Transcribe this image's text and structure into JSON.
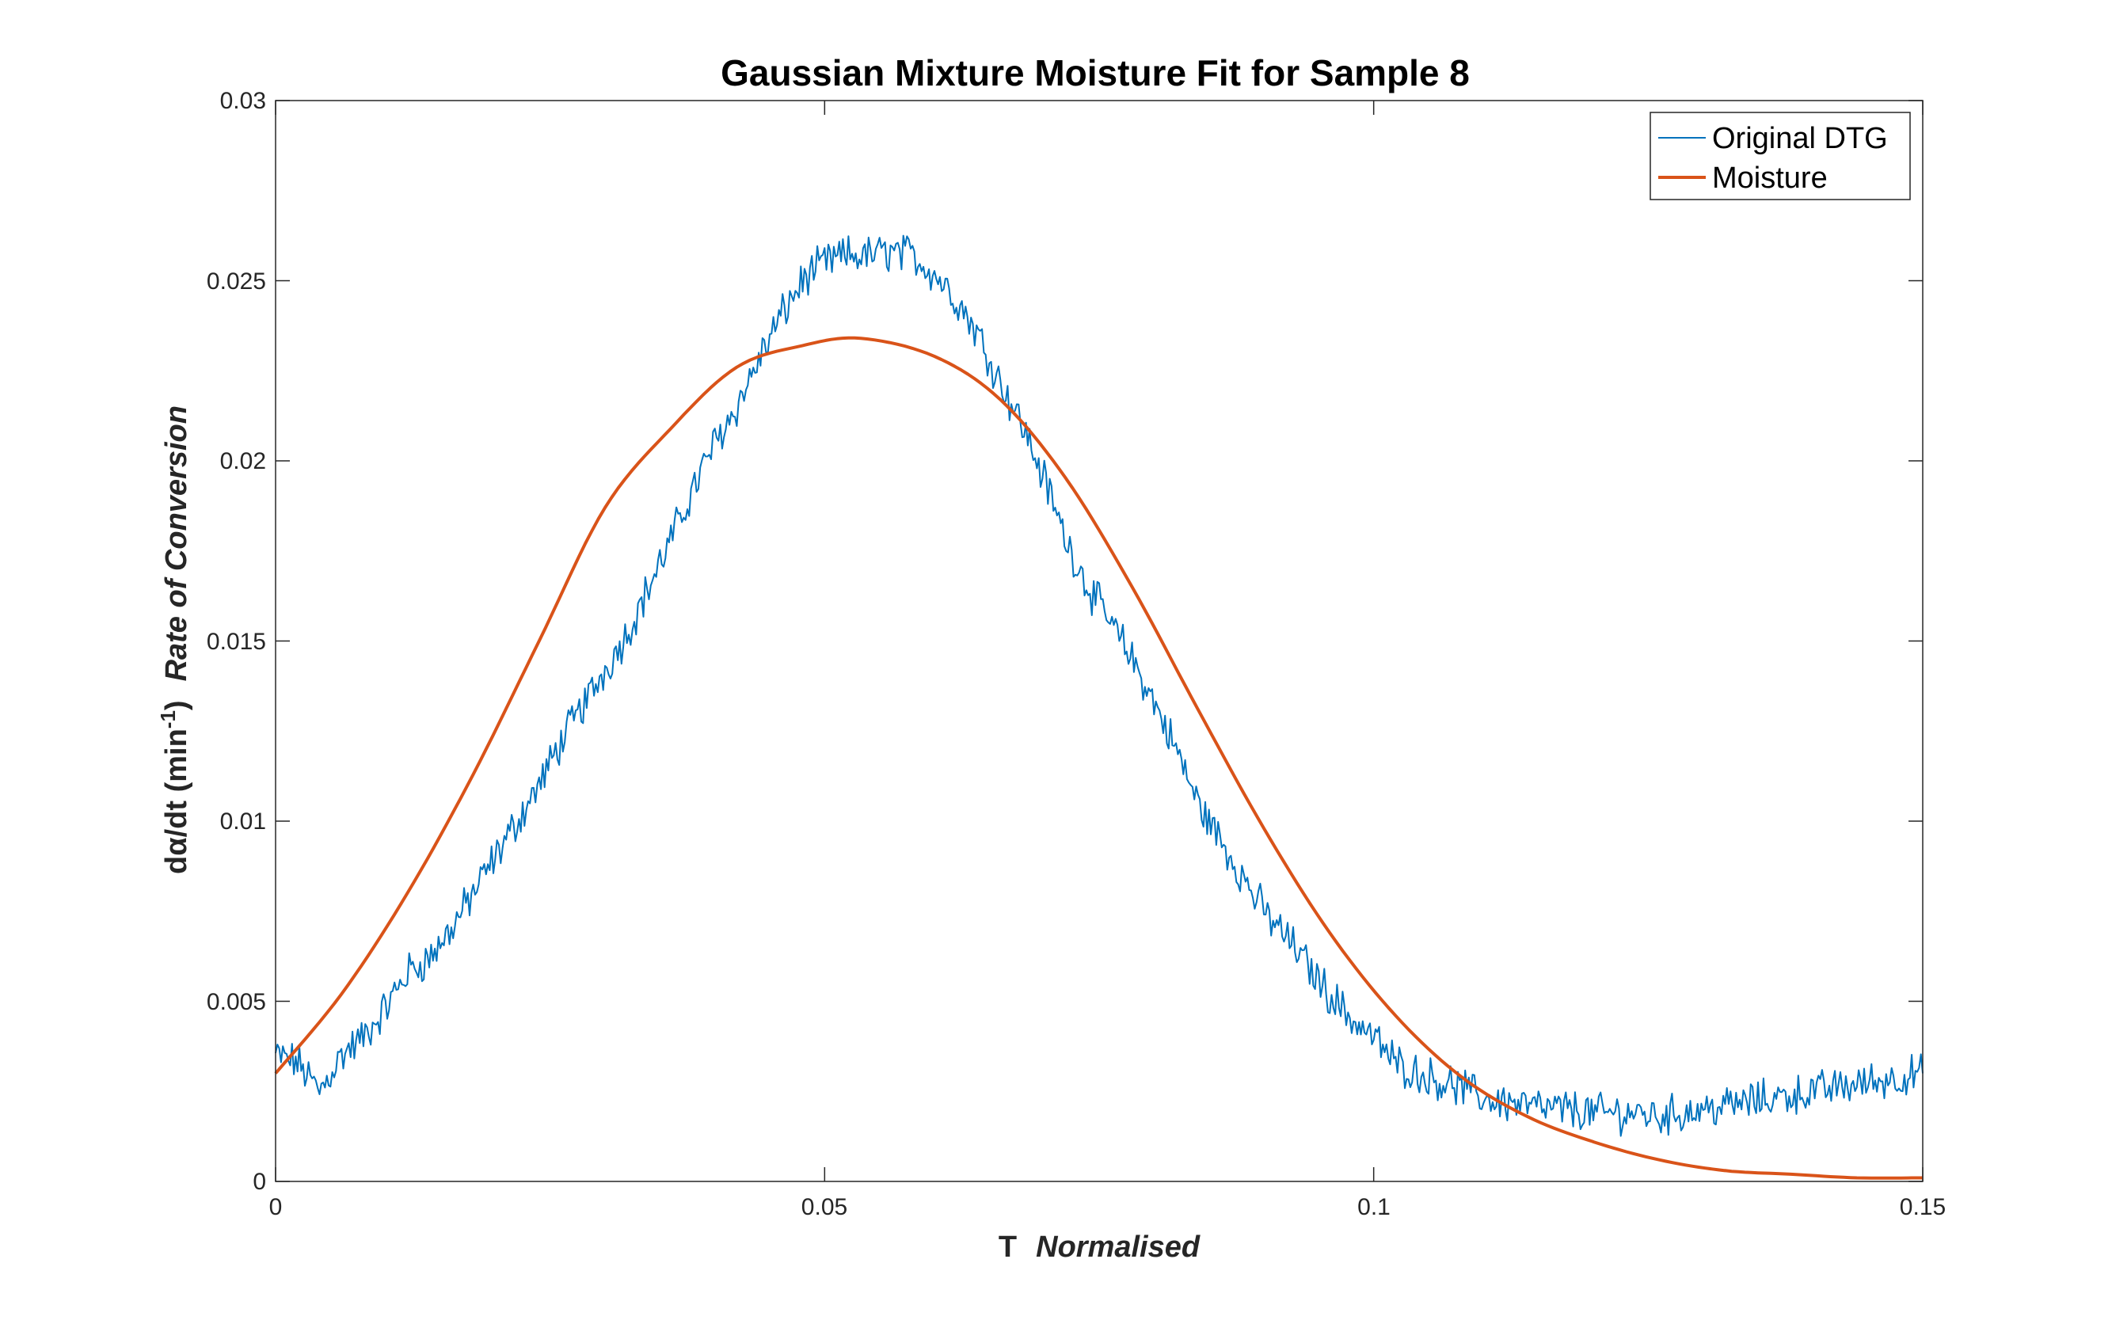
{
  "chart_data": {
    "type": "line",
    "title": "Gaussian Mixture Moisture Fit for Sample 8",
    "xlabel": {
      "prefix": "T",
      "emphasis": "Normalised"
    },
    "ylabel": {
      "prefix": "dα/dt (min",
      "superscript": "-1",
      "suffix": ")",
      "emphasis": "Rate of Conversion"
    },
    "xlim": [
      0,
      0.15
    ],
    "ylim": [
      0,
      0.03
    ],
    "xticks": [
      0,
      0.05,
      0.1,
      0.15
    ],
    "xtick_labels": [
      "0",
      "0.05",
      "0.1",
      "0.15"
    ],
    "yticks": [
      0,
      0.005,
      0.01,
      0.015,
      0.02,
      0.025,
      0.03
    ],
    "ytick_labels": [
      "0",
      "0.005",
      "0.01",
      "0.015",
      "0.02",
      "0.025",
      "0.03"
    ],
    "grid": false,
    "legend_position": "top-right",
    "series": [
      {
        "name": "Original DTG",
        "color": "#0072BD",
        "noisy": true,
        "x": [
          0,
          0.002,
          0.004,
          0.006,
          0.008,
          0.01,
          0.012,
          0.014,
          0.016,
          0.018,
          0.02,
          0.022,
          0.024,
          0.026,
          0.028,
          0.03,
          0.032,
          0.034,
          0.036,
          0.038,
          0.04,
          0.042,
          0.044,
          0.046,
          0.048,
          0.05,
          0.052,
          0.054,
          0.056,
          0.058,
          0.06,
          0.062,
          0.064,
          0.066,
          0.068,
          0.07,
          0.072,
          0.074,
          0.076,
          0.078,
          0.08,
          0.082,
          0.084,
          0.086,
          0.088,
          0.09,
          0.092,
          0.094,
          0.096,
          0.098,
          0.1,
          0.102,
          0.104,
          0.106,
          0.108,
          0.11,
          0.112,
          0.114,
          0.116,
          0.118,
          0.12,
          0.122,
          0.124,
          0.126,
          0.128,
          0.13,
          0.132,
          0.134,
          0.136,
          0.138,
          0.14,
          0.142,
          0.144,
          0.146,
          0.148,
          0.15
        ],
        "values": [
          0.0035,
          0.0033,
          0.0025,
          0.0035,
          0.004,
          0.0048,
          0.0058,
          0.0062,
          0.007,
          0.008,
          0.009,
          0.01,
          0.011,
          0.0122,
          0.0132,
          0.0142,
          0.0152,
          0.0165,
          0.0178,
          0.0192,
          0.0205,
          0.0215,
          0.0228,
          0.024,
          0.025,
          0.0255,
          0.0257,
          0.0257,
          0.0258,
          0.0257,
          0.0252,
          0.0245,
          0.0235,
          0.0222,
          0.021,
          0.0195,
          0.0178,
          0.0165,
          0.0155,
          0.0145,
          0.0133,
          0.012,
          0.0105,
          0.0095,
          0.0085,
          0.0075,
          0.0068,
          0.006,
          0.0052,
          0.0045,
          0.004,
          0.0033,
          0.003,
          0.0028,
          0.0026,
          0.0023,
          0.0022,
          0.0021,
          0.002,
          0.002,
          0.0019,
          0.0019,
          0.0019,
          0.0018,
          0.0019,
          0.002,
          0.0021,
          0.0022,
          0.0023,
          0.0024,
          0.0025,
          0.0026,
          0.0027,
          0.0028,
          0.0029,
          0.003
        ]
      },
      {
        "name": "Moisture",
        "color": "#D95319",
        "x": [
          0,
          0.006,
          0.012,
          0.018,
          0.024,
          0.03,
          0.036,
          0.042,
          0.048,
          0.0533,
          0.06,
          0.066,
          0.072,
          0.078,
          0.084,
          0.09,
          0.096,
          0.102,
          0.108,
          0.114,
          0.12,
          0.126,
          0.132,
          0.138,
          0.144,
          0.15
        ],
        "values": [
          0.003,
          0.0052,
          0.008,
          0.0113,
          0.015,
          0.0187,
          0.0209,
          0.0226,
          0.0232,
          0.0234,
          0.0229,
          0.0217,
          0.0195,
          0.0165,
          0.0131,
          0.0098,
          0.0069,
          0.0046,
          0.0029,
          0.0018,
          0.0011,
          0.0006,
          0.0003,
          0.0002,
          0.0001,
          0.0001
        ]
      }
    ]
  }
}
